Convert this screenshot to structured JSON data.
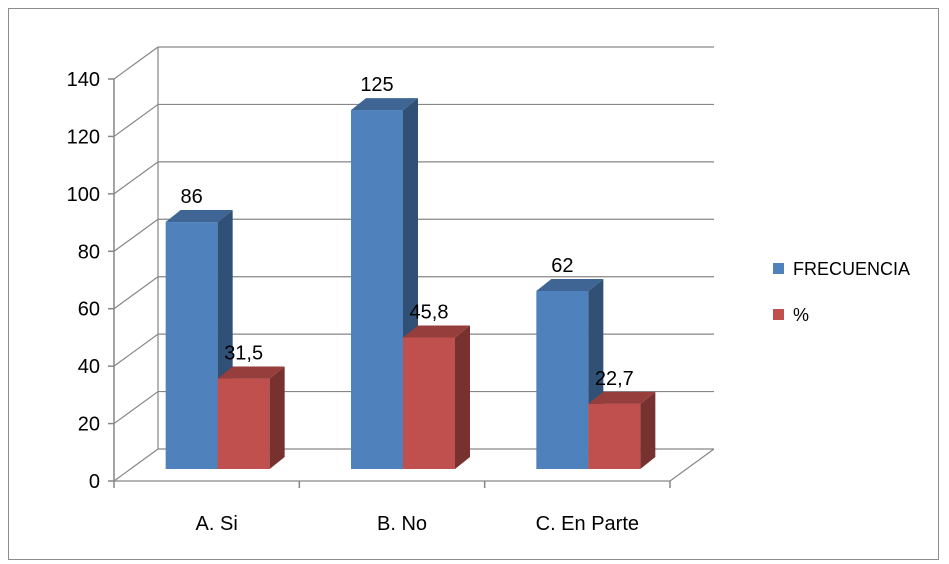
{
  "chart_data": {
    "type": "bar",
    "title": "",
    "xlabel": "",
    "ylabel": "",
    "categories": [
      "A. Si",
      "B. No",
      "C. En Parte"
    ],
    "series": [
      {
        "name": "FRECUENCIA",
        "values": [
          86,
          125,
          62
        ],
        "labels": [
          "86",
          "125",
          "62"
        ],
        "color": "#4F81BD"
      },
      {
        "name": "%",
        "values": [
          31.5,
          45.8,
          22.7
        ],
        "labels": [
          "31,5",
          "45,8",
          "22,7"
        ],
        "color": "#C0504D"
      }
    ],
    "ylim": [
      0,
      140
    ],
    "yticks": [
      0,
      20,
      40,
      60,
      80,
      100,
      120,
      140
    ],
    "grid": true,
    "three_d": true,
    "legend_position": "right"
  }
}
